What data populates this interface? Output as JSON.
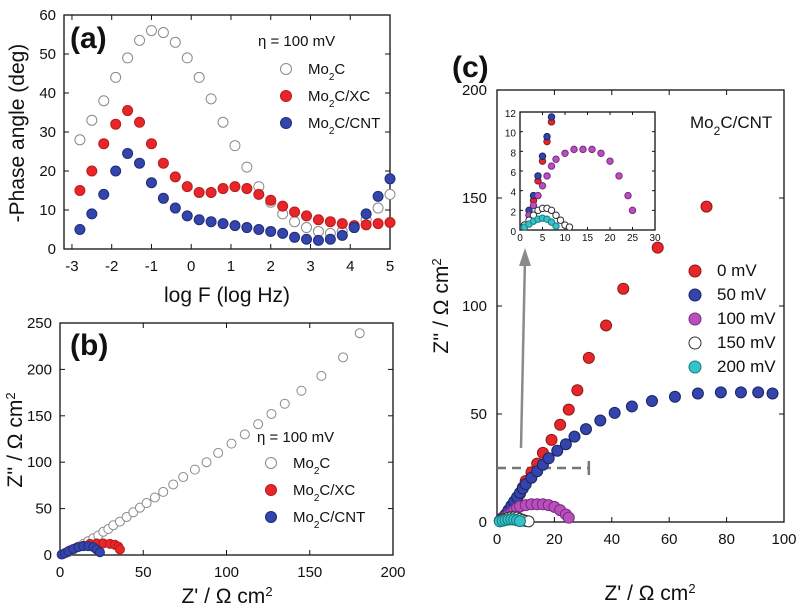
{
  "colors": {
    "mo2c_fill": "#ffffff",
    "mo2c_edge": "#8a8a8a",
    "xc_fill": "#e8262a",
    "xc_edge": "#b81c1c",
    "cnt_fill": "#3344aa",
    "cnt_edge": "#222c7a",
    "v0": "#e8262a",
    "v50": "#3344aa",
    "v100": "#b94fbf",
    "v150": "#ffffff",
    "v200": "#33c3c8"
  },
  "panels": {
    "a": {
      "label": "(a)",
      "eta": "η = 100 mV"
    },
    "b": {
      "label": "(b)",
      "eta": "η = 100 mV"
    },
    "c": {
      "label": "(c)",
      "inset_title_base": "Mo",
      "inset_title_sub": "2",
      "inset_title_rest": "C/CNT"
    }
  },
  "chart_data": [
    {
      "id": "a",
      "type": "scatter",
      "title": "",
      "xlabel": "log F (log Hz)",
      "ylabel": "-Phase angle (deg)",
      "xlim": [
        -3.2,
        5
      ],
      "ylim": [
        0,
        60
      ],
      "xticks": [
        -3,
        -2,
        -1,
        0,
        1,
        2,
        3,
        4,
        5
      ],
      "yticks": [
        0,
        10,
        20,
        30,
        40,
        50,
        60
      ],
      "legend_position": "top-right",
      "series": [
        {
          "name": "Mo2C",
          "label_base": "Mo",
          "label_sub": "2",
          "label_rest": "C",
          "style": "mo2c",
          "x": [
            -2.8,
            -2.5,
            -2.2,
            -1.9,
            -1.6,
            -1.3,
            -1.0,
            -0.7,
            -0.4,
            -0.1,
            0.2,
            0.5,
            0.8,
            1.1,
            1.4,
            1.7,
            2.0,
            2.3,
            2.6,
            2.9,
            3.2,
            3.5,
            3.8,
            4.1,
            4.4,
            4.7,
            5.0
          ],
          "y": [
            28,
            33,
            38,
            44,
            49,
            53.5,
            56,
            55.5,
            53,
            49,
            44,
            38.5,
            32.5,
            26.5,
            21,
            16,
            12,
            9,
            7,
            5.5,
            4.5,
            4,
            4.5,
            5.5,
            7.5,
            10.5,
            14
          ]
        },
        {
          "name": "Mo2C/XC",
          "label_base": "Mo",
          "label_sub": "2",
          "label_rest": "C/XC",
          "style": "xc",
          "x": [
            -2.8,
            -2.5,
            -2.2,
            -1.9,
            -1.6,
            -1.3,
            -1.0,
            -0.7,
            -0.4,
            -0.1,
            0.2,
            0.5,
            0.8,
            1.1,
            1.4,
            1.7,
            2.0,
            2.3,
            2.6,
            2.9,
            3.2,
            3.5,
            3.8,
            4.1,
            4.4,
            4.7,
            5.0
          ],
          "y": [
            15,
            20,
            27,
            32,
            35.5,
            32.5,
            27,
            22,
            18.5,
            16,
            14.5,
            14.5,
            15.5,
            16,
            15.5,
            14,
            12.5,
            11,
            9.5,
            8.5,
            7.5,
            7,
            6.5,
            6,
            6.2,
            6.5,
            6.8
          ]
        },
        {
          "name": "Mo2C/CNT",
          "label_base": "Mo",
          "label_sub": "2",
          "label_rest": "C/CNT",
          "style": "cnt",
          "x": [
            -2.8,
            -2.5,
            -2.2,
            -1.9,
            -1.6,
            -1.3,
            -1.0,
            -0.7,
            -0.4,
            -0.1,
            0.2,
            0.5,
            0.8,
            1.1,
            1.4,
            1.7,
            2.0,
            2.3,
            2.6,
            2.9,
            3.2,
            3.5,
            3.8,
            4.1,
            4.4,
            4.7,
            5.0
          ],
          "y": [
            5,
            9,
            14,
            20,
            24.5,
            22,
            17,
            13,
            10.5,
            8.5,
            7.5,
            7,
            6.5,
            6,
            5.5,
            5,
            4.5,
            4,
            3,
            2.5,
            2.2,
            2.5,
            3.5,
            5.5,
            9,
            13.5,
            18
          ]
        }
      ]
    },
    {
      "id": "b",
      "type": "scatter",
      "title": "",
      "xlabel_base": "Z' / Ω cm",
      "xlabel_sup": "2",
      "ylabel_base": "Z'' / Ω cm",
      "ylabel_sup": "2",
      "xlim": [
        0,
        200
      ],
      "ylim": [
        0,
        250
      ],
      "xticks": [
        0,
        50,
        100,
        150,
        200
      ],
      "yticks": [
        0,
        50,
        100,
        150,
        200,
        250
      ],
      "legend_position": "right",
      "series": [
        {
          "name": "Mo2C",
          "label_base": "Mo",
          "label_sub": "2",
          "label_rest": "C",
          "style": "mo2c",
          "x": [
            2,
            5,
            8,
            11,
            14,
            17,
            20,
            23,
            26,
            29,
            32,
            36,
            40,
            44,
            48,
            52,
            57,
            62,
            68,
            74,
            81,
            88,
            95,
            103,
            111,
            119,
            127,
            135,
            145,
            157,
            170,
            180
          ],
          "y": [
            1,
            3,
            6,
            9,
            12,
            15,
            18,
            21,
            25,
            28,
            32,
            36,
            41,
            46,
            51,
            56,
            62,
            68,
            76,
            84,
            92,
            100,
            110,
            120,
            130,
            141,
            152,
            163,
            177,
            193,
            213,
            239
          ]
        },
        {
          "name": "Mo2C/XC",
          "label_base": "Mo",
          "label_sub": "2",
          "label_rest": "C/XC",
          "style": "xc",
          "x": [
            3,
            6,
            10,
            14,
            18,
            22,
            26,
            30,
            33,
            35,
            36
          ],
          "y": [
            2,
            5,
            8,
            10,
            12,
            12.5,
            12.5,
            12,
            11,
            9,
            6
          ]
        },
        {
          "name": "Mo2C/CNT",
          "label_base": "Mo",
          "label_sub": "2",
          "label_rest": "C/CNT",
          "style": "cnt",
          "x": [
            1,
            3,
            5,
            8,
            11,
            14,
            17,
            20,
            22,
            24
          ],
          "y": [
            0.5,
            2,
            4,
            6.5,
            8.5,
            9.5,
            9.5,
            8.5,
            6,
            3
          ]
        }
      ]
    },
    {
      "id": "c",
      "type": "scatter",
      "title": "",
      "xlabel_base": "Z' / Ω cm",
      "xlabel_sup": "2",
      "ylabel_base": "Z'' / Ω cm",
      "ylabel_sup": "2",
      "xlim": [
        0,
        100
      ],
      "ylim": [
        0,
        200
      ],
      "xticks": [
        0,
        20,
        40,
        60,
        80,
        100
      ],
      "yticks": [
        0,
        50,
        100,
        150,
        200
      ],
      "legend_position": "right",
      "series": [
        {
          "name": "0 mV",
          "style": "v0",
          "x": [
            1,
            2,
            3,
            4,
            5,
            6,
            7,
            8,
            9,
            10,
            12,
            14,
            16,
            19,
            22,
            25,
            28,
            32,
            38,
            44,
            56,
            73
          ],
          "y": [
            0.5,
            1.5,
            3,
            5,
            7,
            9,
            11,
            13,
            16,
            19,
            23,
            27,
            32,
            38,
            45,
            52,
            61,
            76,
            91,
            108,
            127,
            146
          ]
        },
        {
          "name": "50 mV",
          "style": "v50",
          "x": [
            1,
            2,
            3,
            4,
            5,
            6,
            7,
            8,
            9,
            10,
            12,
            14,
            16,
            18,
            21,
            24,
            27,
            31,
            36,
            41,
            47,
            54,
            62,
            70,
            78,
            85,
            91,
            96
          ],
          "y": [
            0.5,
            2,
            3.5,
            5.5,
            7.5,
            9.5,
            11.5,
            13.5,
            15.5,
            17.5,
            20.5,
            23.5,
            26.5,
            29.5,
            33,
            36,
            39.5,
            43,
            47,
            50.5,
            53.5,
            56,
            58,
            59.5,
            60,
            60,
            60,
            59.5
          ]
        },
        {
          "name": "100 mV",
          "style": "v100",
          "x": [
            1,
            2,
            3,
            4,
            5,
            6,
            7,
            8,
            10,
            12,
            14,
            16,
            18,
            20,
            22,
            24,
            25
          ],
          "y": [
            0.5,
            1.5,
            2.5,
            3.5,
            4.5,
            5.5,
            6.5,
            7.2,
            7.8,
            8.2,
            8.2,
            8.2,
            7.8,
            7,
            5.5,
            3.5,
            2
          ]
        },
        {
          "name": "150 mV",
          "style": "v150",
          "x": [
            1,
            2,
            3,
            4,
            5,
            6,
            7,
            8,
            9,
            10,
            11
          ],
          "y": [
            0.5,
            1,
            1.5,
            2,
            2.2,
            2.2,
            2,
            1.5,
            1,
            0.5,
            0.3
          ]
        },
        {
          "name": "200 mV",
          "style": "v200",
          "x": [
            1,
            2,
            3,
            4,
            5,
            6,
            7,
            8
          ],
          "y": [
            0.3,
            0.6,
            0.9,
            1.1,
            1.2,
            1.1,
            0.8,
            0.4
          ]
        }
      ],
      "inset": {
        "xlim": [
          0,
          30
        ],
        "ylim": [
          0,
          12
        ],
        "xticks": [
          0,
          5,
          10,
          15,
          20,
          25,
          30
        ],
        "yticks": [
          0,
          2,
          4,
          6,
          8,
          10,
          12
        ],
        "zoom_box_y": 25,
        "zoom_box_x": 32
      }
    }
  ]
}
